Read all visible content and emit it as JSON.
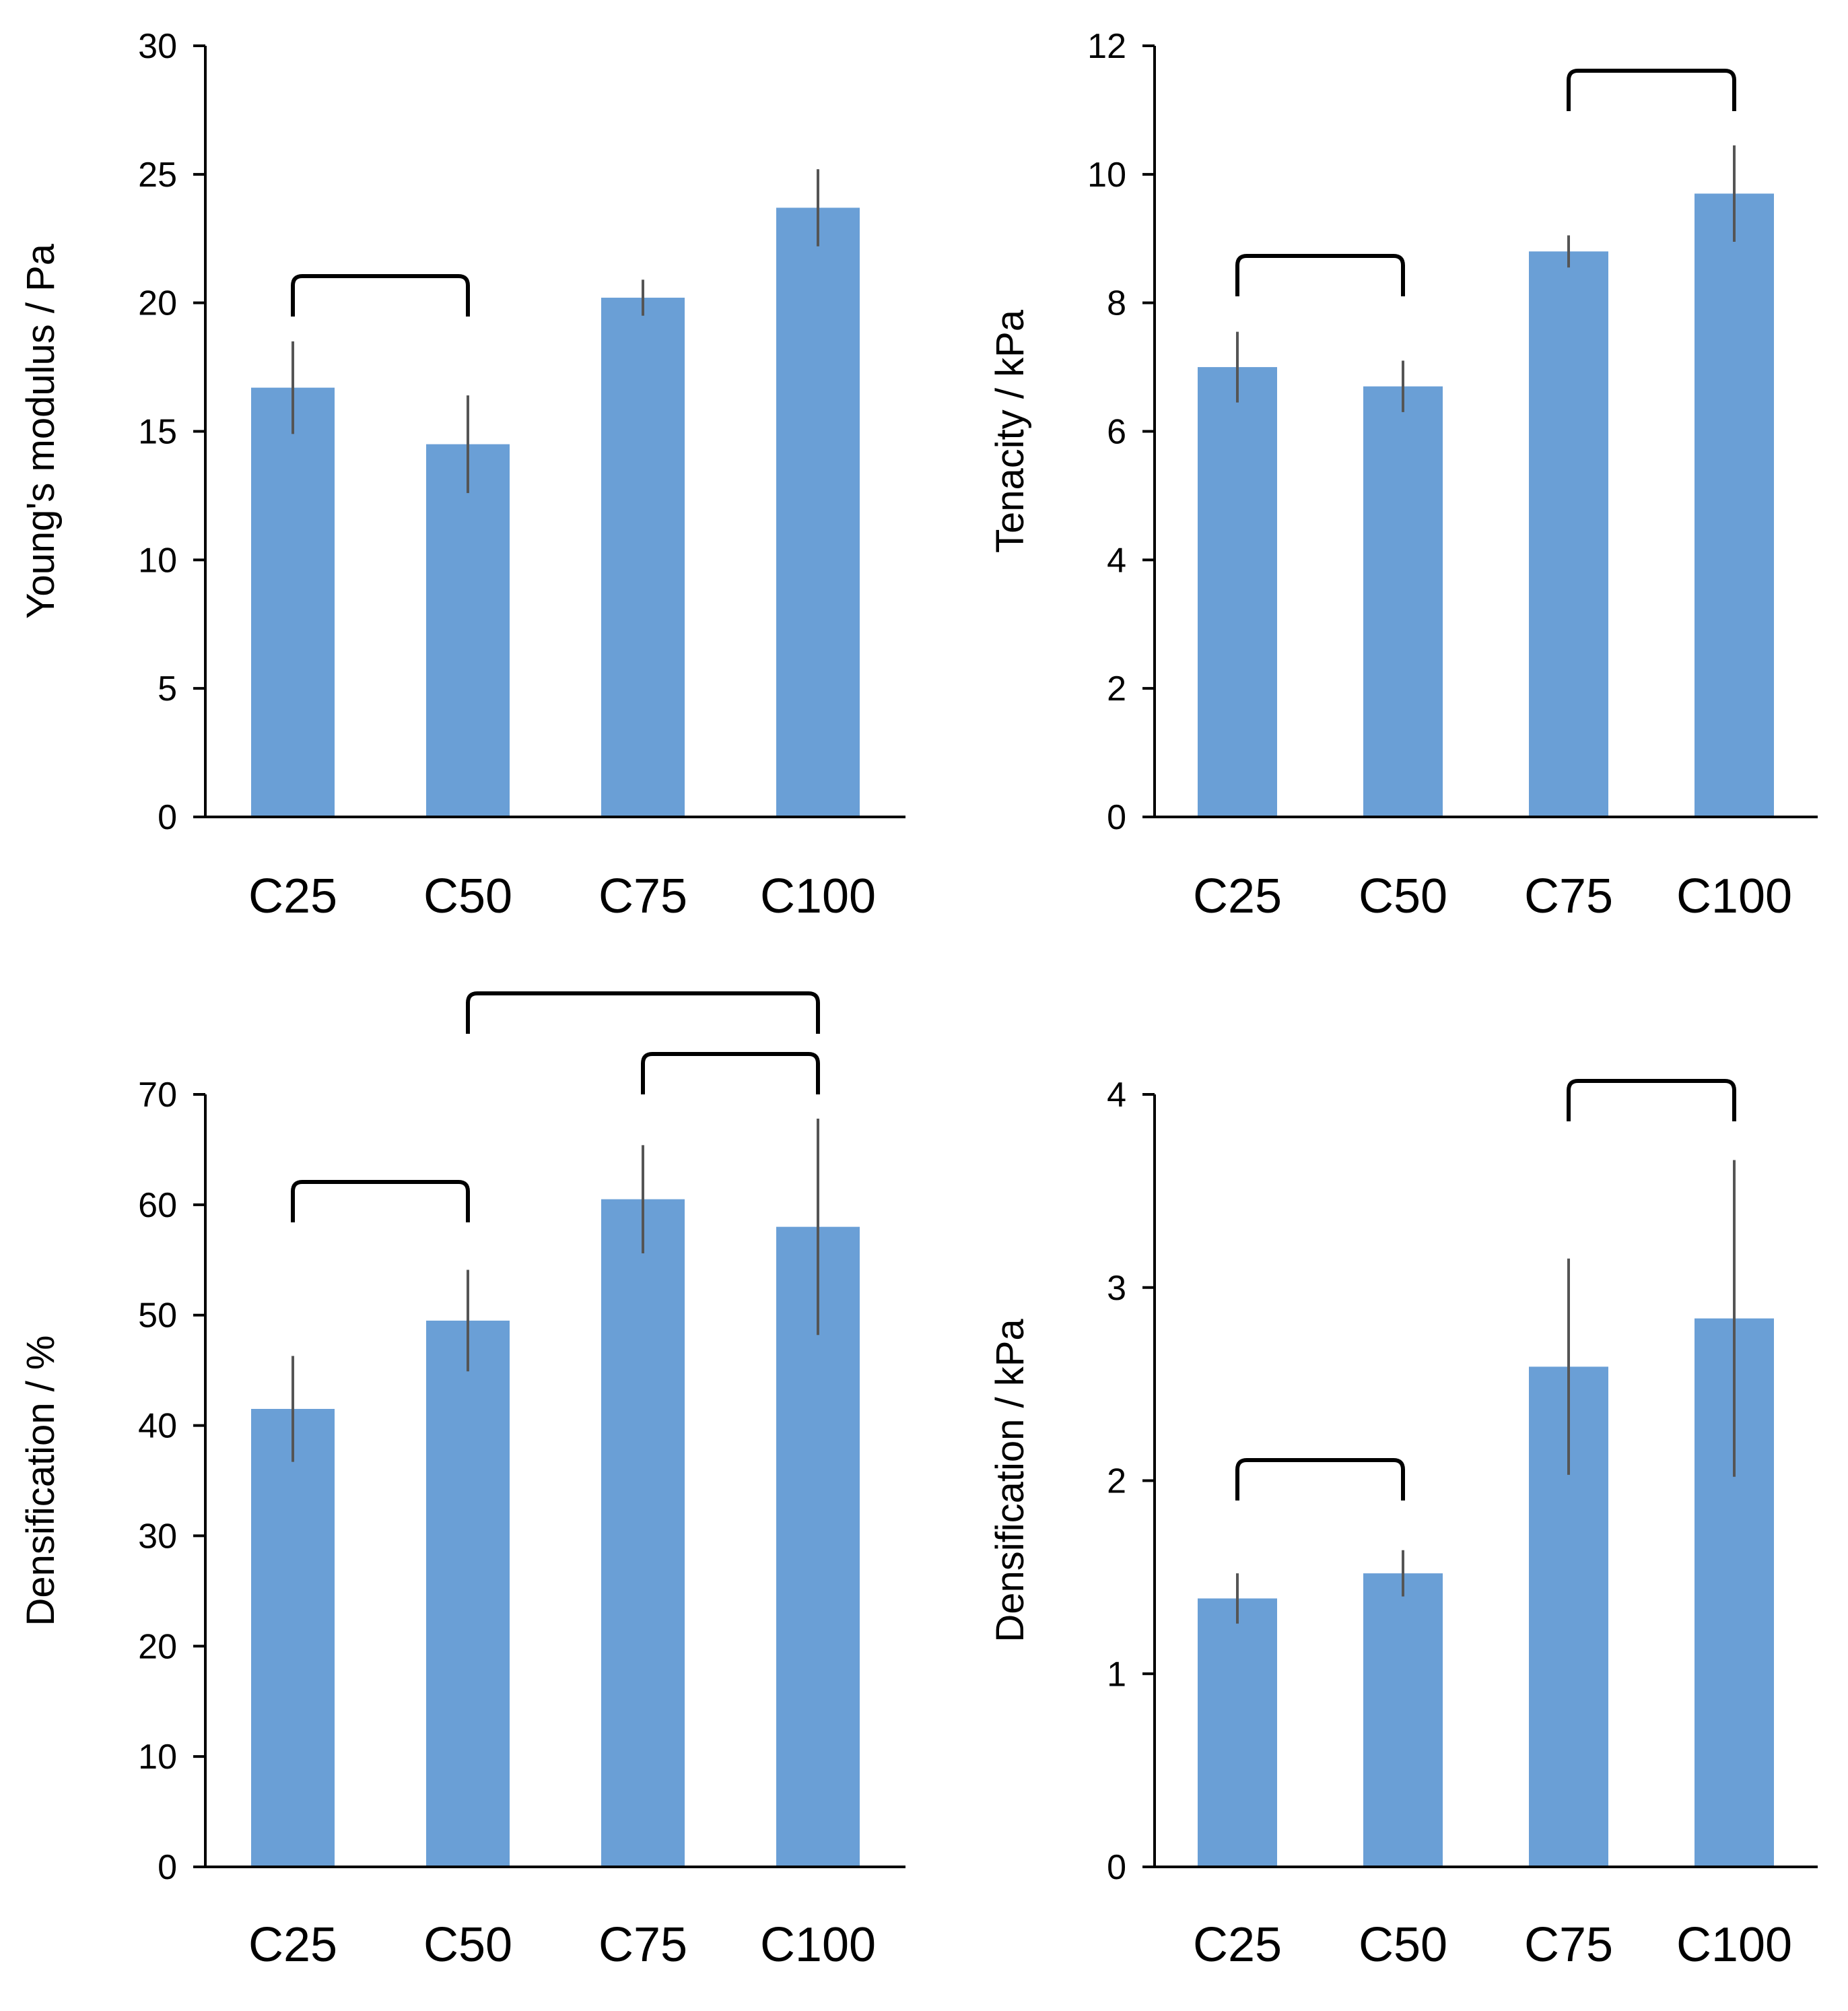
{
  "accent_color": "#6a9fd6",
  "errorbar_color": "#555555",
  "categories": [
    "C25",
    "C50",
    "C75",
    "C100"
  ],
  "chart_data": [
    {
      "type": "bar",
      "categories": [
        "C25",
        "C50",
        "C75",
        "C100"
      ],
      "values": [
        16.7,
        14.5,
        20.2,
        23.7
      ],
      "errors": [
        1.8,
        1.9,
        0.7,
        1.5
      ],
      "ylabel": "Young's modulus  / Pa",
      "ylim": [
        0,
        30
      ],
      "yticks": [
        "0",
        "5",
        "10",
        "15",
        "20",
        "25",
        "30"
      ],
      "brackets": [
        [
          0,
          1
        ]
      ]
    },
    {
      "type": "bar",
      "categories": [
        "C25",
        "C50",
        "C75",
        "C100"
      ],
      "values": [
        7.0,
        6.7,
        8.8,
        9.7
      ],
      "errors": [
        0.55,
        0.4,
        0.25,
        0.75
      ],
      "ylabel": "Tenacity / kPa",
      "ylim": [
        0,
        12
      ],
      "yticks": [
        "0",
        "2",
        "4",
        "6",
        "8",
        "10",
        "12"
      ],
      "brackets": [
        [
          0,
          1
        ],
        [
          2,
          3
        ]
      ]
    },
    {
      "type": "bar",
      "categories": [
        "C25",
        "C50",
        "C75",
        "C100"
      ],
      "values": [
        41.5,
        49.5,
        60.5,
        58.0
      ],
      "errors": [
        4.8,
        4.6,
        4.9,
        9.8
      ],
      "ylabel": "Densification / %",
      "ylim": [
        0,
        70
      ],
      "yticks": [
        "0",
        "10",
        "20",
        "30",
        "40",
        "50",
        "60",
        "70"
      ],
      "brackets": [
        [
          0,
          1
        ],
        [
          2,
          3
        ],
        [
          1,
          3
        ]
      ]
    },
    {
      "type": "bar",
      "categories": [
        "C25",
        "C50",
        "C75",
        "C100"
      ],
      "values": [
        1.39,
        1.52,
        2.59,
        2.84
      ],
      "errors": [
        0.13,
        0.12,
        0.56,
        0.82
      ],
      "ylabel": "Densification / kPa",
      "ylim": [
        0,
        4
      ],
      "yticks": [
        "0",
        "1",
        "2",
        "3",
        "4"
      ],
      "brackets": [
        [
          0,
          1
        ],
        [
          2,
          3
        ]
      ]
    }
  ]
}
